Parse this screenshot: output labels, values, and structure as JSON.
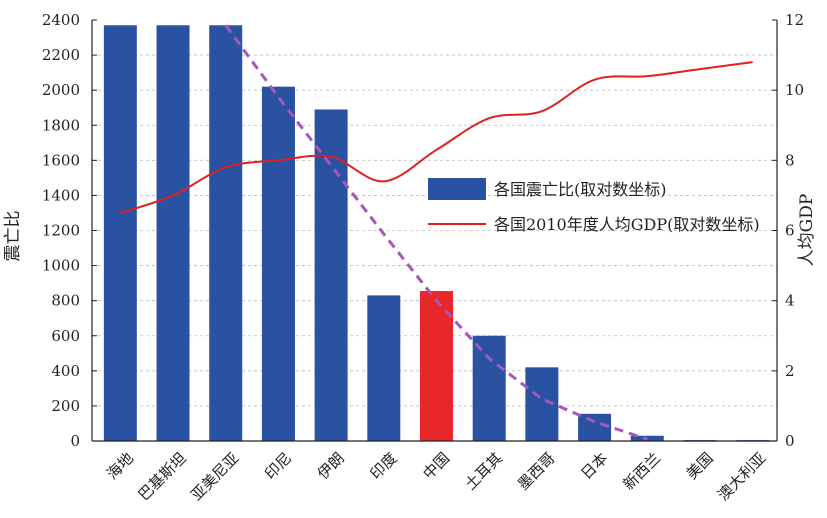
{
  "chart_data": {
    "type": "bar",
    "categories": [
      "海地",
      "巴基斯坦",
      "亚美尼亚",
      "印尼",
      "伊朗",
      "印度",
      "中国",
      "土耳其",
      "墨西哥",
      "日本",
      "新西兰",
      "美国",
      "澳大利亚"
    ],
    "series": [
      {
        "name": "各国震亡比(取对数坐标)",
        "type": "bar",
        "axis": "left",
        "values": [
          2370,
          2370,
          2370,
          2020,
          1890,
          830,
          855,
          600,
          420,
          155,
          30,
          5,
          5
        ],
        "color": "#2952a3",
        "highlight": {
          "category": "中国",
          "color": "#e8272a"
        }
      },
      {
        "name": "各国2010年度人均GDP(取对数坐标)",
        "type": "line",
        "axis": "right",
        "values": [
          6.5,
          7.0,
          7.8,
          8.0,
          8.1,
          7.4,
          8.3,
          9.2,
          9.4,
          10.3,
          10.4,
          10.6,
          10.8
        ],
        "color": "#e02020"
      },
      {
        "type": "dashed-trend",
        "axis": "left",
        "points": [
          [
            2,
            2370
          ],
          [
            3,
            1960
          ],
          [
            4,
            1570
          ],
          [
            5,
            1180
          ],
          [
            6,
            800
          ],
          [
            7,
            470
          ],
          [
            8,
            240
          ],
          [
            9,
            110
          ],
          [
            10,
            10
          ]
        ],
        "color": "#a459b8"
      }
    ],
    "ylabel": "震亡比",
    "y2label": "人均GDP",
    "ylim": [
      0,
      2400
    ],
    "y2lim": [
      0,
      12
    ],
    "yticks": [
      0,
      200,
      400,
      600,
      800,
      1000,
      1200,
      1400,
      1600,
      1800,
      2000,
      2200,
      2400
    ],
    "y2ticks": [
      0,
      2,
      4,
      6,
      8,
      10,
      12
    ],
    "grid": true,
    "legend": "center-right"
  }
}
